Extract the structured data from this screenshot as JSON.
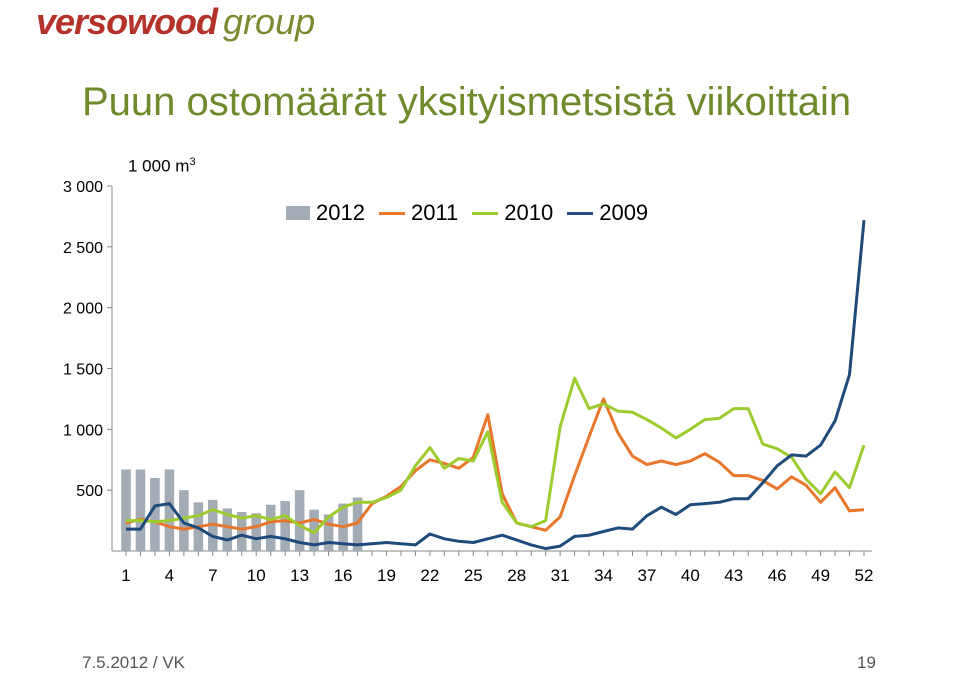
{
  "logo": {
    "brand": "versowood",
    "group": "group"
  },
  "title": "Puun ostomäärät yksityismetsistä viikoittain",
  "unit": {
    "text": "1 000 m",
    "sup": "3"
  },
  "footer": {
    "date": "7.5.2012 / VK",
    "page": "19"
  },
  "colors": {
    "bars": "#a3abb5",
    "l2011": "#e8762b",
    "l2010": "#9ccc2e",
    "l2009": "#1f4a7c",
    "title": "#6f8a2a",
    "brand": "#b5322a"
  },
  "chart_data": {
    "type": "bar",
    "ylim": [
      0,
      3000
    ],
    "yticks": [
      500,
      1000,
      1500,
      2000,
      2500,
      3000
    ],
    "ytick_labels": [
      "500",
      "1 000",
      "1 500",
      "2 000",
      "2 500",
      "3 000"
    ],
    "xlim": [
      1,
      52
    ],
    "xticks": [
      1,
      4,
      7,
      10,
      13,
      16,
      19,
      22,
      25,
      28,
      31,
      34,
      37,
      40,
      43,
      46,
      49,
      52
    ],
    "grid": false,
    "legend_position": "top",
    "series": [
      {
        "name": "2012",
        "type": "bar",
        "x": [
          1,
          2,
          3,
          4,
          5,
          6,
          7,
          8,
          9,
          10,
          11,
          12,
          13,
          14,
          15,
          16,
          17
        ],
        "values": [
          670,
          670,
          600,
          670,
          500,
          400,
          420,
          350,
          320,
          310,
          380,
          410,
          500,
          340,
          300,
          390,
          440
        ]
      },
      {
        "name": "2011",
        "type": "line",
        "values": [
          230,
          260,
          240,
          200,
          180,
          200,
          220,
          200,
          180,
          200,
          240,
          250,
          230,
          260,
          220,
          200,
          230,
          390,
          450,
          530,
          660,
          750,
          720,
          680,
          770,
          1120,
          470,
          230,
          200,
          170,
          280,
          620,
          940,
          1250,
          970,
          780,
          710,
          740,
          710,
          740,
          800,
          730,
          620,
          620,
          580,
          510,
          610,
          540,
          400,
          520,
          330,
          340
        ]
      },
      {
        "name": "2010",
        "type": "line",
        "values": [
          250,
          250,
          240,
          250,
          270,
          290,
          340,
          300,
          270,
          290,
          260,
          290,
          210,
          150,
          280,
          360,
          400,
          400,
          440,
          500,
          700,
          850,
          680,
          760,
          740,
          980,
          400,
          230,
          200,
          250,
          1020,
          1420,
          1170,
          1210,
          1150,
          1140,
          1080,
          1010,
          930,
          1000,
          1080,
          1090,
          1170,
          1170,
          880,
          840,
          770,
          590,
          470,
          650,
          520,
          870
        ]
      },
      {
        "name": "2009",
        "type": "line",
        "values": [
          180,
          180,
          370,
          390,
          230,
          190,
          120,
          90,
          130,
          100,
          120,
          100,
          70,
          50,
          70,
          60,
          50,
          60,
          70,
          60,
          50,
          140,
          100,
          80,
          70,
          100,
          130,
          90,
          50,
          20,
          40,
          120,
          130,
          160,
          190,
          180,
          290,
          360,
          300,
          380,
          390,
          400,
          430,
          430,
          560,
          700,
          790,
          780,
          870,
          1070,
          1450,
          2720
        ]
      }
    ]
  }
}
